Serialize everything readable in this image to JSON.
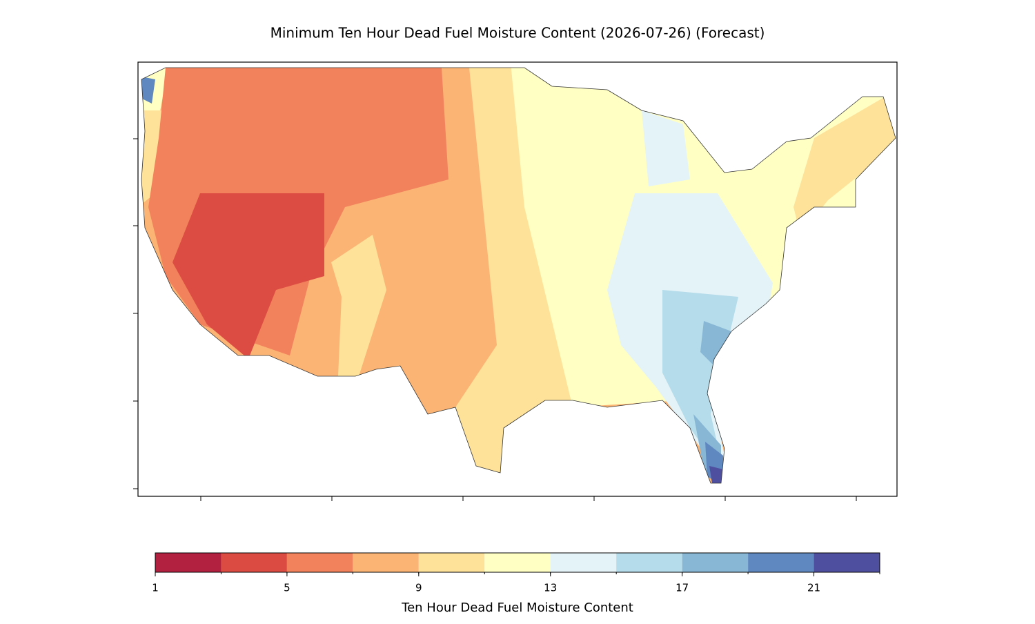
{
  "title": "Minimum Ten Hour Dead Fuel Moisture Content (2026-07-26) (Forecast)",
  "colorbar": {
    "label": "Ten Hour Dead Fuel Moisture Content",
    "boundaries": [
      1,
      3,
      5,
      7,
      9,
      11,
      13,
      15,
      17,
      19,
      21,
      23
    ],
    "colors": [
      "#b2213f",
      "#dc4b42",
      "#f1825c",
      "#fbb474",
      "#fee29a",
      "#ffffc4",
      "#e4f3f8",
      "#b5dcea",
      "#88b6d5",
      "#5f88c0",
      "#4f4f9f"
    ],
    "ticks": [
      1,
      5,
      9,
      13,
      17,
      21
    ]
  }
}
